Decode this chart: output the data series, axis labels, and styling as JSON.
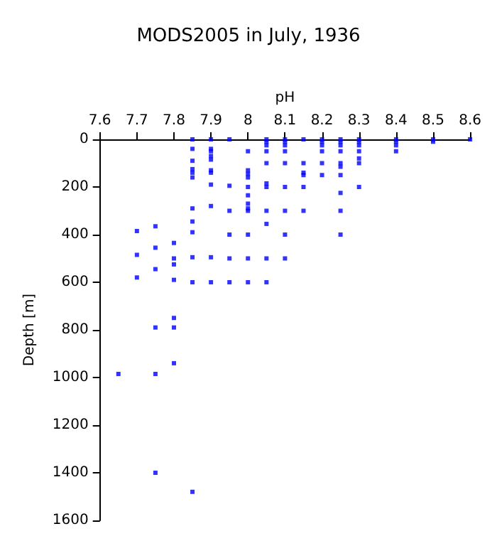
{
  "chart_data": {
    "type": "scatter",
    "title": "MODS2005 in July, 1936",
    "xlabel": "pH",
    "ylabel": "Depth [m]",
    "x": [
      7.65,
      7.7,
      7.7,
      7.7,
      7.75,
      7.75,
      7.75,
      7.75,
      7.75,
      7.75,
      7.8,
      7.8,
      7.8,
      7.8,
      7.8,
      7.8,
      7.8,
      7.85,
      7.85,
      7.85,
      7.85,
      7.85,
      7.85,
      7.85,
      7.85,
      7.85,
      7.85,
      7.85,
      7.85,
      7.9,
      7.9,
      7.9,
      7.9,
      7.9,
      7.9,
      7.9,
      7.9,
      7.9,
      7.9,
      7.9,
      7.95,
      7.95,
      7.95,
      7.95,
      7.95,
      7.95,
      8,
      8,
      8,
      8,
      8,
      8,
      8,
      8,
      8,
      8,
      8,
      8,
      8.05,
      8.05,
      8.05,
      8.05,
      8.05,
      8.05,
      8.05,
      8.05,
      8.05,
      8.05,
      8.05,
      8.1,
      8.1,
      8.1,
      8.1,
      8.1,
      8.1,
      8.1,
      8.1,
      8.1,
      8.15,
      8.15,
      8.15,
      8.15,
      8.15,
      8.15,
      8.2,
      8.2,
      8.2,
      8.2,
      8.2,
      8.2,
      8.25,
      8.25,
      8.25,
      8.25,
      8.25,
      8.25,
      8.25,
      8.25,
      8.25,
      8.25,
      8.3,
      8.3,
      8.3,
      8.3,
      8.3,
      8.3,
      8.3,
      8.4,
      8.4,
      8.4,
      8.4,
      8.5,
      8.5,
      8.6
    ],
    "values": [
      985,
      385,
      485,
      580,
      1400,
      365,
      455,
      545,
      790,
      985,
      435,
      500,
      525,
      590,
      750,
      790,
      940,
      0,
      40,
      90,
      125,
      140,
      160,
      290,
      345,
      390,
      495,
      600,
      1480,
      0,
      40,
      50,
      70,
      85,
      130,
      140,
      190,
      280,
      495,
      600,
      0,
      195,
      300,
      400,
      500,
      600,
      50,
      130,
      145,
      160,
      200,
      235,
      270,
      290,
      300,
      400,
      500,
      600,
      0,
      10,
      25,
      50,
      100,
      185,
      200,
      300,
      355,
      500,
      600,
      0,
      10,
      25,
      50,
      100,
      200,
      300,
      400,
      500,
      0,
      100,
      140,
      150,
      200,
      300,
      0,
      10,
      25,
      50,
      100,
      150,
      0,
      10,
      25,
      50,
      100,
      115,
      150,
      225,
      300,
      400,
      0,
      10,
      25,
      50,
      80,
      100,
      200,
      0,
      10,
      25,
      50,
      0,
      10,
      0
    ],
    "color": "#0000ff",
    "marker": "square",
    "xlim": [
      7.6,
      8.6
    ],
    "xticks": [
      7.6,
      7.7,
      7.8,
      7.9,
      8,
      8.1,
      8.2,
      8.3,
      8.4,
      8.5,
      8.6
    ],
    "ylim": [
      1600,
      0
    ],
    "yticks": [
      0,
      200,
      400,
      600,
      800,
      1000,
      1200,
      1400,
      1600
    ],
    "grid": false
  }
}
